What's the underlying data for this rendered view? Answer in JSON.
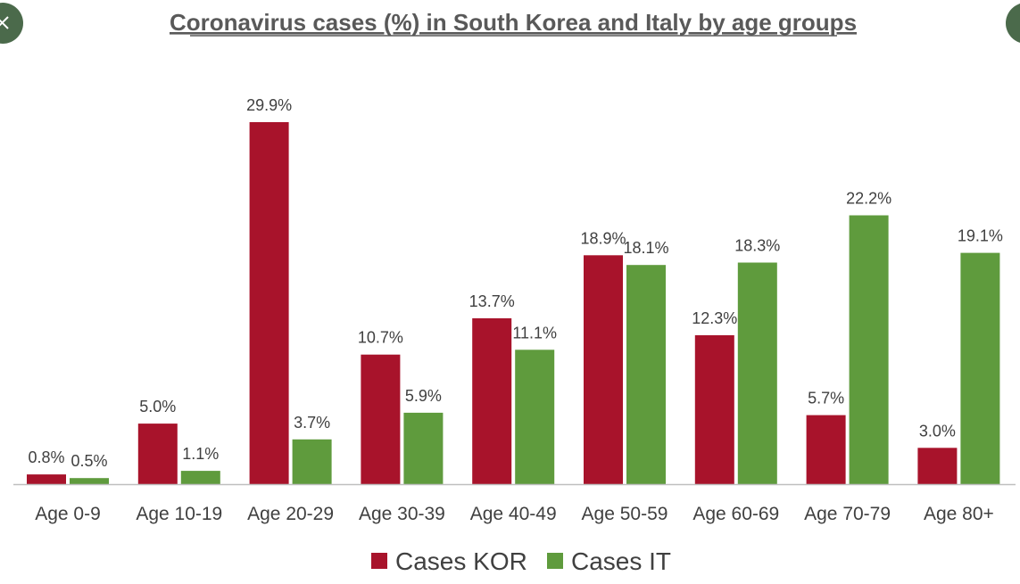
{
  "chart_data": {
    "type": "bar",
    "title": "Coronavirus cases (%) in South Korea and Italy by age groups",
    "categories": [
      "Age 0-9",
      "Age 10-19",
      "Age 20-29",
      "Age 30-39",
      "Age 40-49",
      "Age 50-59",
      "Age 60-69",
      "Age 70-79",
      "Age 80+"
    ],
    "series": [
      {
        "name": "Cases KOR",
        "color": "#a8132b",
        "values": [
          0.8,
          5.0,
          29.9,
          10.7,
          13.7,
          18.9,
          12.3,
          5.7,
          3.0
        ],
        "labels": [
          "0.8%",
          "5.0%",
          "29.9%",
          "10.7%",
          "13.7%",
          "18.9%",
          "12.3%",
          "5.7%",
          "3.0%"
        ]
      },
      {
        "name": "Cases IT",
        "color": "#5f9b3d",
        "values": [
          0.5,
          1.1,
          3.7,
          5.9,
          11.1,
          18.1,
          18.3,
          22.2,
          19.1
        ],
        "labels": [
          "0.5%",
          "1.1%",
          "3.7%",
          "5.9%",
          "11.1%",
          "18.1%",
          "18.3%",
          "22.2%",
          "19.1%"
        ]
      }
    ],
    "ylim": [
      0,
      30
    ],
    "grid": false,
    "legend_position": "bottom"
  },
  "colors": {
    "text": "#404040",
    "axis": "#bfbfbf",
    "title": "#595959",
    "button": "#4b6a4b"
  },
  "icons": {
    "left_button": "close-icon",
    "right_button": "circle-button-icon"
  }
}
